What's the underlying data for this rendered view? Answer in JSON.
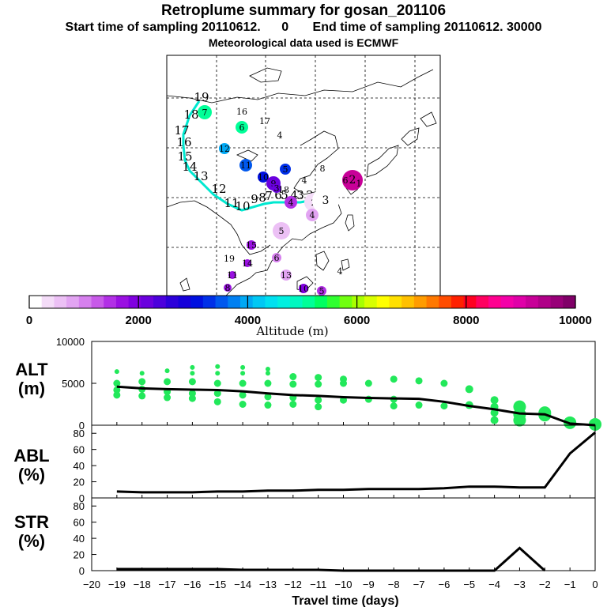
{
  "header": {
    "title": "Retroplume summary for gosan_201106",
    "start_label": "Start time of sampling 20110612.",
    "start_value": "0",
    "end_label": "End time of sampling 20110612. 30000",
    "met_label": "Meteorological data used is ECMWF"
  },
  "colorbar": {
    "label": "Altitude (m)",
    "ticks": [
      "0",
      "2000",
      "4000",
      "6000",
      "8000",
      "10000"
    ],
    "range": [
      0,
      10000
    ],
    "colors": [
      "#ffffff",
      "#f4dcf8",
      "#ecc0f5",
      "#e2a4f2",
      "#d680ee",
      "#c85ae9",
      "#b230e6",
      "#9a10e2",
      "#8000e0",
      "#6a00de",
      "#4c00dc",
      "#2c00da",
      "#1600da",
      "#0010e0",
      "#0030e8",
      "#0058ee",
      "#0080f2",
      "#00a8f4",
      "#00c8f4",
      "#00e0f0",
      "#00f0e0",
      "#00f8c0",
      "#00ff98",
      "#00ff60",
      "#30ff30",
      "#70ff10",
      "#a8ff00",
      "#d8ff00",
      "#ffff00",
      "#ffe000",
      "#ffc000",
      "#ff9c00",
      "#ff7800",
      "#ff4c00",
      "#ff2000",
      "#ff0020",
      "#ff0060",
      "#ff0090",
      "#f400a8",
      "#e000a8",
      "#c80098",
      "#b00088",
      "#980078",
      "#800068"
    ]
  },
  "map": {
    "track_labels": [
      "19",
      "18",
      "17",
      "16",
      "15",
      "14",
      "13",
      "12",
      "11",
      "10",
      "9",
      "8",
      "7",
      "6",
      "5",
      "4",
      "3",
      "2",
      "1"
    ],
    "point_labels": [
      "7",
      "16",
      "17",
      "6",
      "4",
      "12",
      "11",
      "5",
      "10",
      "9",
      "3",
      "18",
      "4",
      "8",
      "4",
      "2",
      "3",
      "4",
      "5",
      "2",
      "6",
      "1",
      "15",
      "14",
      "6",
      "19",
      "13",
      "11",
      "8",
      "10",
      "4",
      "5"
    ]
  },
  "chart_data": [
    {
      "type": "scatter",
      "name": "ALT",
      "ylabel": "ALT\n(m)",
      "ylabel_lines": [
        "ALT",
        "(m)"
      ],
      "ylim": [
        0,
        10000
      ],
      "yticks": [
        "0",
        "5000",
        "10000"
      ],
      "xlim": [
        -20,
        0
      ],
      "x": [
        -19,
        -18,
        -17,
        -16,
        -15,
        -14,
        -13,
        -12,
        -11,
        -10,
        -9,
        -8,
        -7,
        -6,
        -5,
        -4,
        -3,
        -2,
        -1,
        0
      ],
      "median_line": [
        4600,
        4400,
        4300,
        4250,
        4200,
        4050,
        3800,
        3600,
        3500,
        3350,
        3250,
        3200,
        3150,
        2800,
        2300,
        1900,
        1400,
        1300,
        200,
        0
      ],
      "scatter_points": [
        [
          -19,
          6400
        ],
        [
          -19,
          5000
        ],
        [
          -19,
          4200
        ],
        [
          -19,
          3600
        ],
        [
          -18,
          6200
        ],
        [
          -18,
          5200
        ],
        [
          -18,
          4300
        ],
        [
          -18,
          3500
        ],
        [
          -17,
          6500
        ],
        [
          -17,
          5200
        ],
        [
          -17,
          4000
        ],
        [
          -17,
          3300
        ],
        [
          -16,
          6900
        ],
        [
          -16,
          6200
        ],
        [
          -16,
          5200
        ],
        [
          -16,
          3800
        ],
        [
          -16,
          3200
        ],
        [
          -15,
          7000
        ],
        [
          -15,
          6200
        ],
        [
          -15,
          5000
        ],
        [
          -15,
          3800
        ],
        [
          -15,
          2800
        ],
        [
          -14,
          6900
        ],
        [
          -14,
          6200
        ],
        [
          -14,
          5000
        ],
        [
          -14,
          3600
        ],
        [
          -14,
          2500
        ],
        [
          -13,
          6700
        ],
        [
          -13,
          6200
        ],
        [
          -13,
          5000
        ],
        [
          -13,
          3400
        ],
        [
          -13,
          2400
        ],
        [
          -12,
          5800
        ],
        [
          -12,
          4900
        ],
        [
          -12,
          3300
        ],
        [
          -12,
          2500
        ],
        [
          -11,
          5700
        ],
        [
          -11,
          4900
        ],
        [
          -11,
          3000
        ],
        [
          -11,
          2200
        ],
        [
          -10,
          5500
        ],
        [
          -10,
          5000
        ],
        [
          -10,
          3000
        ],
        [
          -9,
          5000
        ],
        [
          -9,
          3100
        ],
        [
          -8,
          5500
        ],
        [
          -8,
          3100
        ],
        [
          -8,
          2300
        ],
        [
          -7,
          5300
        ],
        [
          -7,
          2400
        ],
        [
          -6,
          5000
        ],
        [
          -6,
          2300
        ],
        [
          -5,
          4300
        ],
        [
          -5,
          2400
        ],
        [
          -4,
          3000
        ],
        [
          -4,
          2200
        ],
        [
          -4,
          1500
        ],
        [
          -4,
          600
        ],
        [
          -3,
          2200
        ],
        [
          -3,
          1300
        ],
        [
          -3,
          600
        ],
        [
          -2,
          1500
        ],
        [
          -2,
          1200
        ],
        [
          -1,
          300
        ],
        [
          0,
          100
        ]
      ]
    },
    {
      "type": "line",
      "name": "ABL",
      "ylabel_lines": [
        "ABL",
        "(%)"
      ],
      "ylim": [
        0,
        90
      ],
      "yticks": [
        "0",
        "20",
        "40",
        "60",
        "80"
      ],
      "xlim": [
        -20,
        0
      ],
      "x": [
        -19,
        -18,
        -17,
        -16,
        -15,
        -14,
        -13,
        -12,
        -11,
        -10,
        -9,
        -8,
        -7,
        -6,
        -5,
        -4,
        -3,
        -2,
        -1,
        0
      ],
      "values": [
        8,
        7,
        7,
        7,
        8,
        8,
        9,
        9,
        10,
        10,
        11,
        11,
        11,
        12,
        14,
        14,
        13,
        13,
        55,
        81
      ]
    },
    {
      "type": "line",
      "name": "STR",
      "ylabel_lines": [
        "STR",
        "(%)"
      ],
      "ylim": [
        0,
        90
      ],
      "yticks": [
        "0",
        "20",
        "40",
        "60",
        "80"
      ],
      "xlim": [
        -20,
        0
      ],
      "x": [
        -19,
        -18,
        -17,
        -16,
        -15,
        -14,
        -13,
        -12,
        -11,
        -10,
        -9,
        -8,
        -7,
        -6,
        -5,
        -4,
        -3,
        -2
      ],
      "values": [
        2,
        2,
        2,
        2,
        2,
        1,
        1,
        1,
        1,
        0,
        0,
        0,
        0,
        0,
        0,
        0,
        28,
        0
      ],
      "xlabel": "Travel time (days)",
      "xticks": [
        "−20",
        "−19",
        "−18",
        "−17",
        "−16",
        "−15",
        "−14",
        "−13",
        "−12",
        "−11",
        "−10",
        "−9",
        "−8",
        "−7",
        "−6",
        "−5",
        "−4",
        "−3",
        "−2",
        "−1",
        "0"
      ]
    }
  ]
}
